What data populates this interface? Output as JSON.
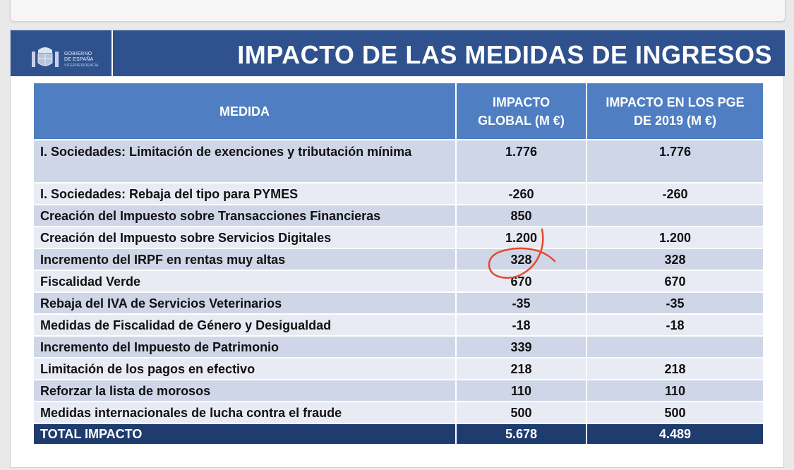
{
  "header": {
    "title": "IMPACTO DE LAS MEDIDAS DE INGRESOS",
    "logo": {
      "line1": "GOBIERNO",
      "line2": "DE ESPAÑA",
      "line3": "VICEPRESIDENCIA"
    }
  },
  "table": {
    "headers": {
      "col1": "MEDIDA",
      "col2_line1": "IMPACTO",
      "col2_line2": "GLOBAL (M €)",
      "col3_line1": "IMPACTO EN LOS PGE",
      "col3_line2": "DE 2019 (M €)"
    },
    "rows": [
      {
        "medida": "I. Sociedades: Limitación de exenciones y tributación mínima",
        "global": "1.776",
        "pge": "1.776"
      },
      {
        "medida": "I. Sociedades: Rebaja del tipo para PYMES",
        "global": "-260",
        "pge": "-260"
      },
      {
        "medida": "Creación del Impuesto sobre Transacciones Financieras",
        "global": "850",
        "pge": ""
      },
      {
        "medida": "Creación del Impuesto sobre Servicios Digitales",
        "global": "1.200",
        "pge": "1.200"
      },
      {
        "medida": "Incremento del IRPF en rentas muy altas",
        "global": "328",
        "pge": "328"
      },
      {
        "medida": "Fiscalidad Verde",
        "global": "670",
        "pge": "670"
      },
      {
        "medida": "Rebaja del IVA de Servicios Veterinarios",
        "global": "-35",
        "pge": "-35"
      },
      {
        "medida": "Medidas de Fiscalidad de Género y Desigualdad",
        "global": "-18",
        "pge": "-18"
      },
      {
        "medida": "Incremento del Impuesto de Patrimonio",
        "global": "339",
        "pge": ""
      },
      {
        "medida": "Limitación de los pagos en efectivo",
        "global": "218",
        "pge": "218"
      },
      {
        "medida": "Reforzar la lista de morosos",
        "global": "110",
        "pge": "110"
      },
      {
        "medida": "Medidas internacionales de lucha contra el fraude",
        "global": "500",
        "pge": "500"
      }
    ],
    "total": {
      "label": "TOTAL IMPACTO",
      "global": "5.678",
      "pge": "4.489"
    }
  },
  "colors": {
    "header_bg": "#2f528f",
    "table_header": "#4f7ec2",
    "row_odd": "#cfd6e8",
    "row_even": "#e8ebf4",
    "total_bg": "#1f3c6e",
    "annotation": "#e8482c"
  },
  "icons": {
    "crest": "spain-coat-of-arms-icon",
    "annotation": "red-circle-mark"
  }
}
